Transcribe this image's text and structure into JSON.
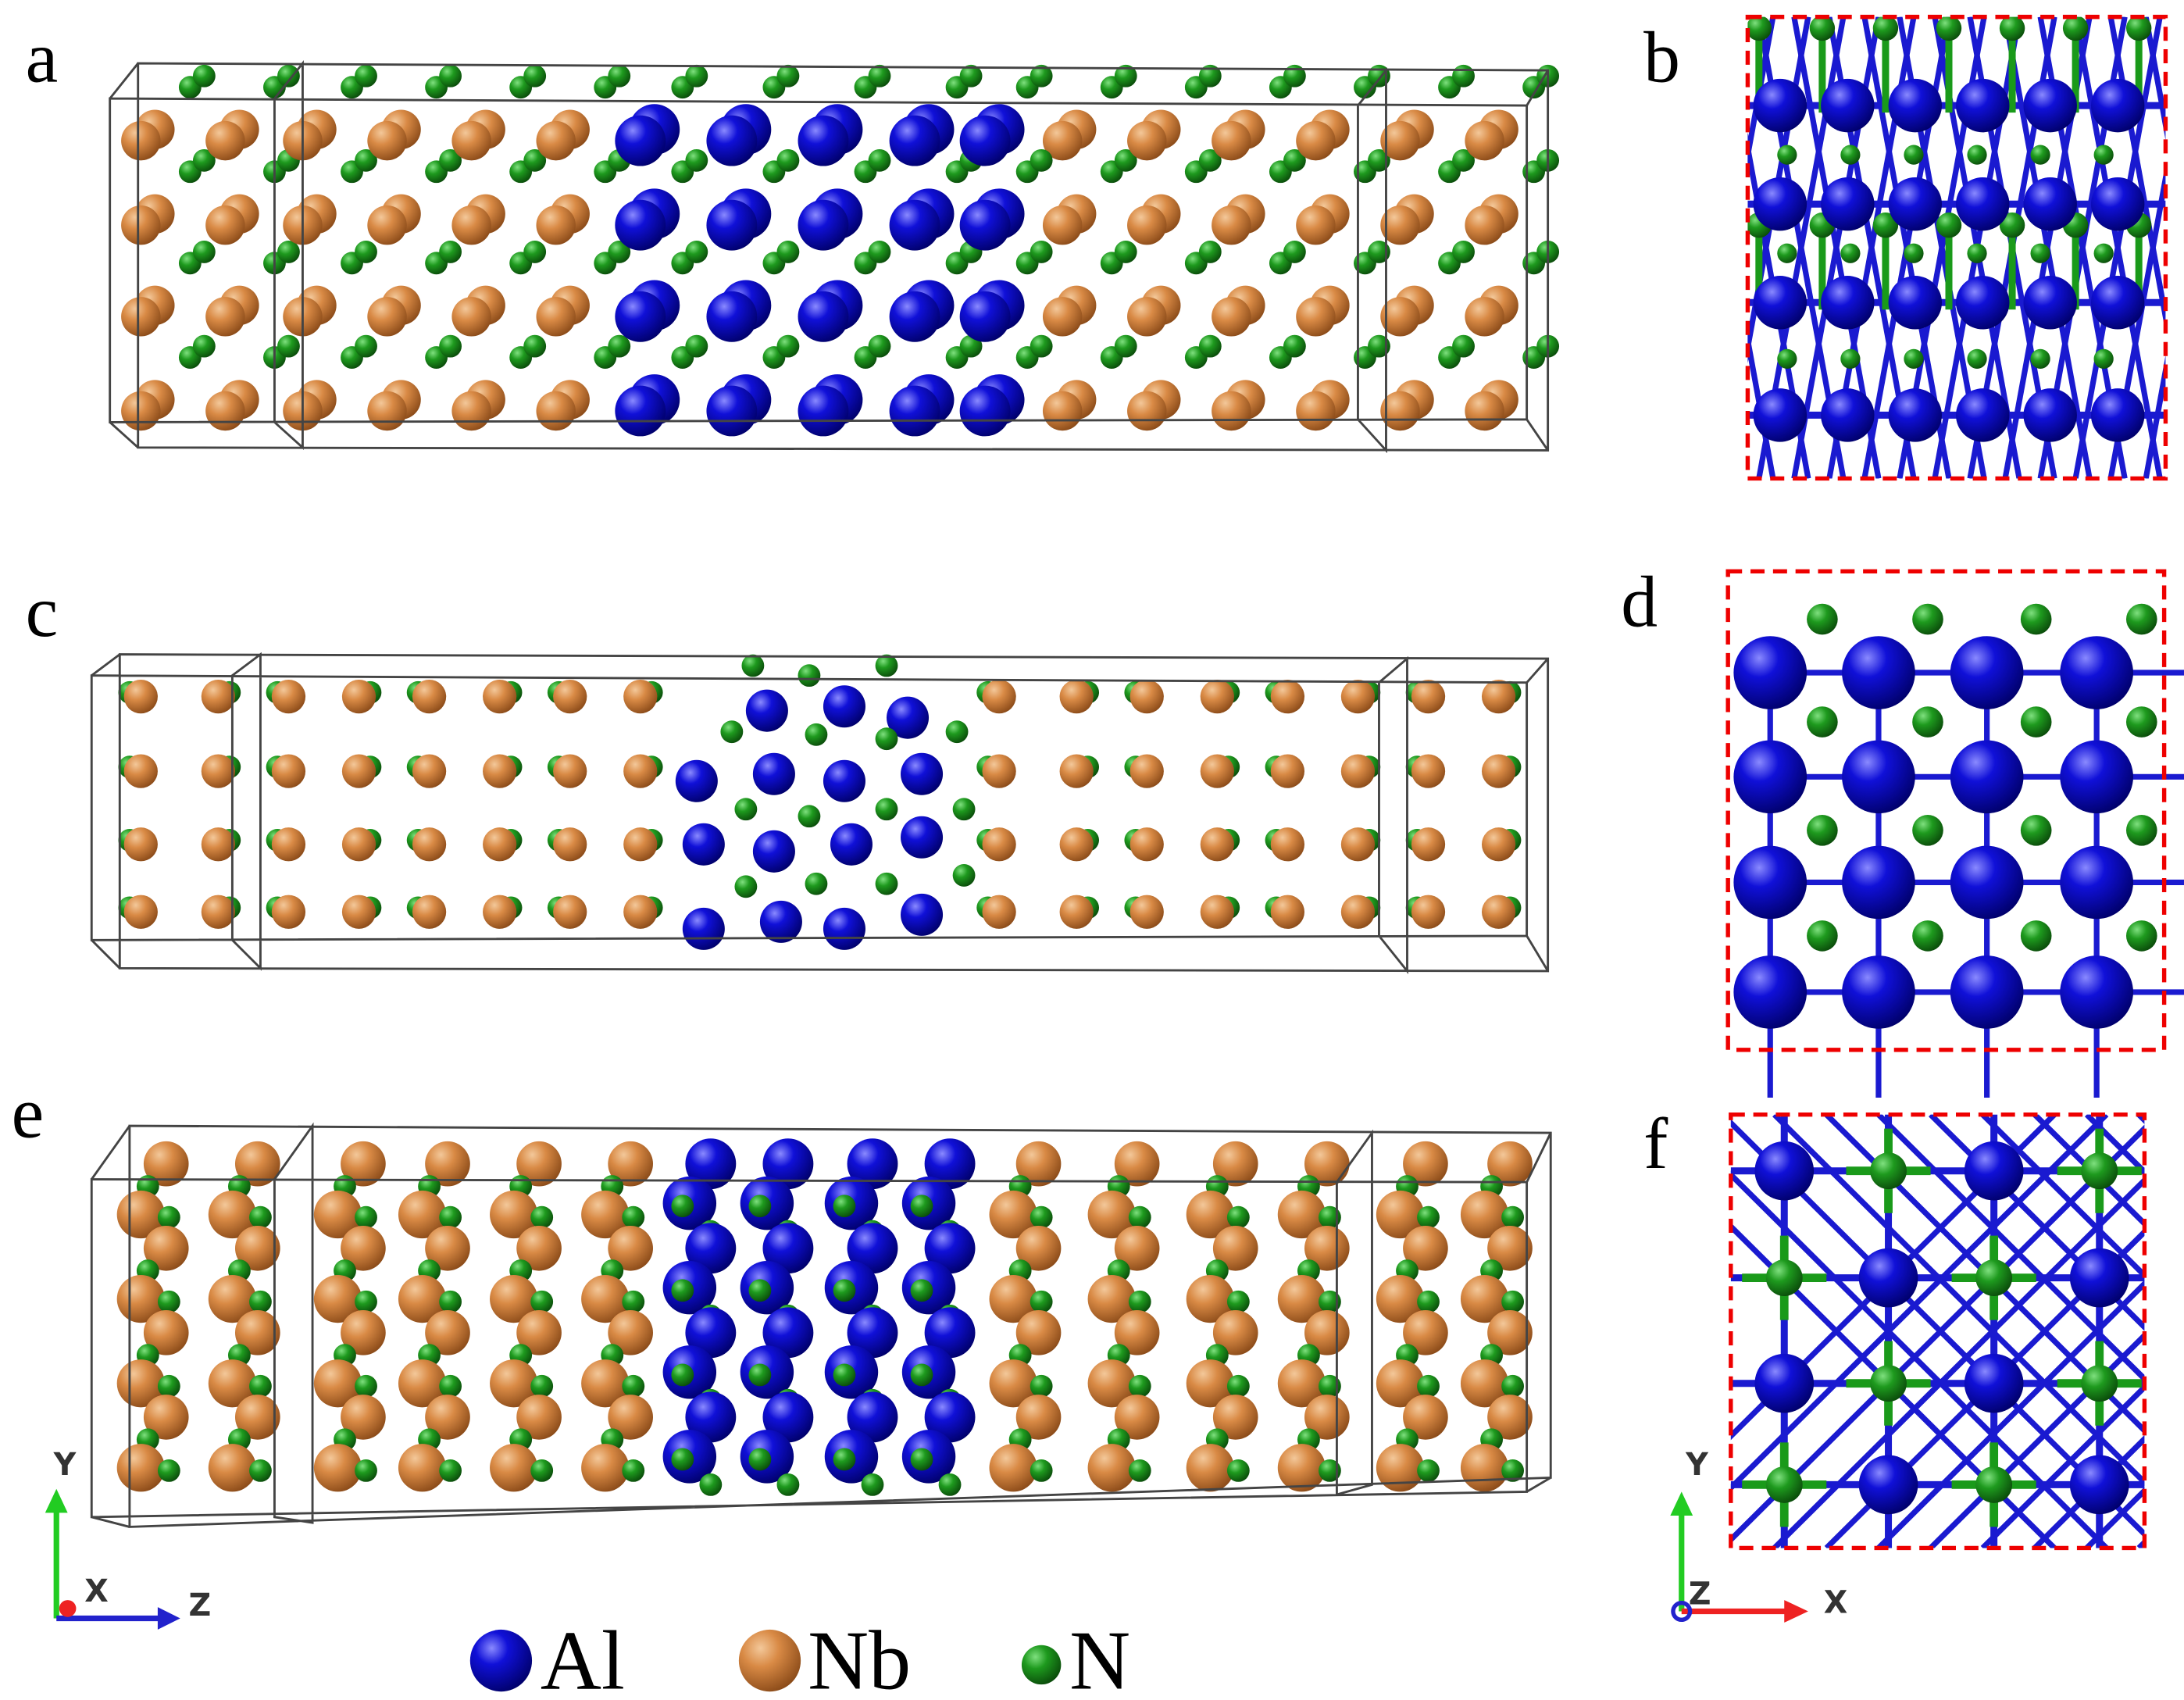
{
  "panels": {
    "a": "a",
    "b": "b",
    "c": "c",
    "d": "d",
    "e": "e",
    "f": "f"
  },
  "legend": [
    {
      "label": "Al"
    },
    {
      "label": "Nb"
    },
    {
      "label": "N"
    }
  ],
  "axes_left": {
    "y": "Y",
    "x": "X",
    "z": "Z"
  },
  "axes_right": {
    "y": "Y",
    "z": "Z",
    "x": "X"
  }
}
